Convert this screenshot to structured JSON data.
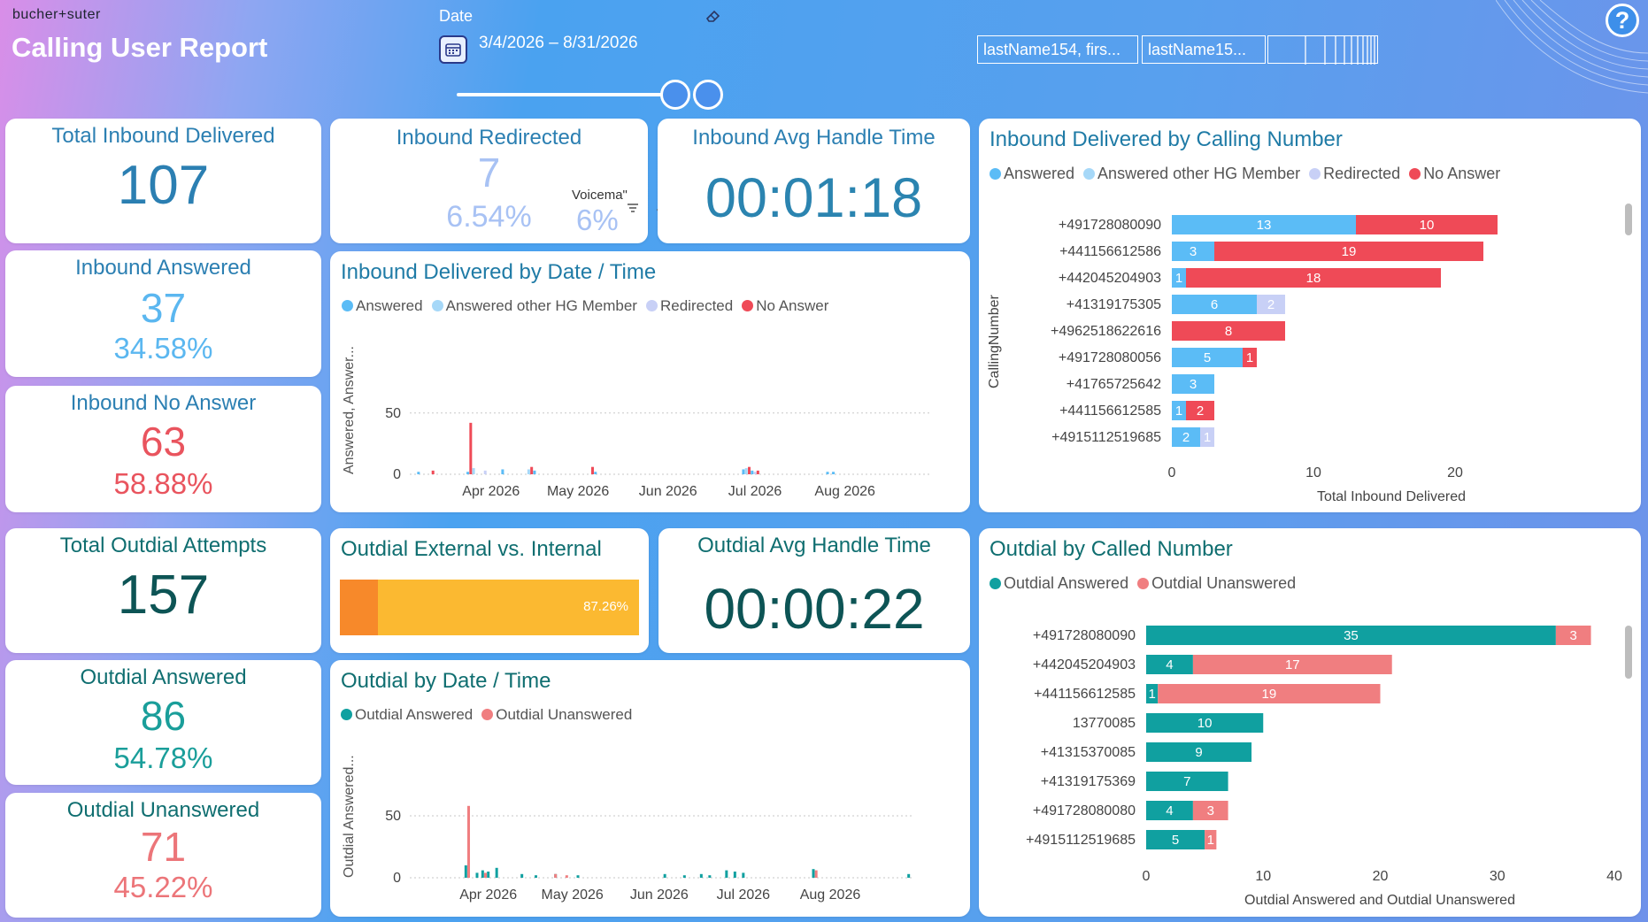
{
  "header": {
    "brand": "bucher+suter",
    "title": "Calling User Report",
    "date_label": "Date",
    "date_range": "3/4/2026 – 8/31/2026",
    "user_filter_1": "lastName154, firs...",
    "user_filter_2": "lastName15...",
    "help_label": "?"
  },
  "colors": {
    "answered": "#5bbcf6",
    "answered_other": "#a6d8f8",
    "redirected": "#c8d0f6",
    "no_answer": "#ef4a57",
    "outdial_answered": "#10a0a0",
    "outdial_unanswered": "#f07e80"
  },
  "kpis": {
    "total_inbound": {
      "title": "Total Inbound Delivered",
      "value": "107"
    },
    "inbound_redirected": {
      "title": "Inbound Redirected",
      "value": "7",
      "pct": "6.54%",
      "voicemail_label": "Voicema\"",
      "voicemail_pct": "6%"
    },
    "inbound_aht": {
      "title": "Inbound Avg Handle Time",
      "value": "00:01:18"
    },
    "inbound_answered": {
      "title": "Inbound Answered",
      "value": "37",
      "pct": "34.58%"
    },
    "inbound_no_answer": {
      "title": "Inbound No Answer",
      "value": "63",
      "pct": "58.88%"
    },
    "total_outdial": {
      "title": "Total Outdial Attempts",
      "value": "157"
    },
    "outdial_aht": {
      "title": "Outdial Avg Handle Time",
      "value": "00:00:22"
    },
    "outdial_answered": {
      "title": "Outdial Answered",
      "value": "86",
      "pct": "54.78%"
    },
    "outdial_unanswered": {
      "title": "Outdial Unanswered",
      "value": "71",
      "pct": "45.22%"
    }
  },
  "outdial_ext_int": {
    "title": "Outdial External vs. Internal",
    "external_pct_label": "87.26%",
    "external_fraction": 0.8726
  },
  "inbound_by_number": {
    "title": "Inbound Delivered by Calling Number",
    "legend": [
      "Answered",
      "Answered other HG Member",
      "Redirected",
      "No Answer"
    ],
    "ylabel": "CallingNumber",
    "xlabel": "Total Inbound Delivered"
  },
  "outdial_by_number": {
    "title": "Outdial by Called Number",
    "legend": [
      "Outdial Answered",
      "Outdial Unanswered"
    ],
    "xlabel": "Outdial Answered and Outdial Unanswered"
  },
  "inbound_by_date": {
    "title": "Inbound Delivered by Date / Time",
    "legend": [
      "Answered",
      "Answered other HG Member",
      "Redirected",
      "No Answer"
    ],
    "ylabel": "Answered, Answer..."
  },
  "outdial_by_date": {
    "title": "Outdial by Date / Time",
    "legend": [
      "Outdial Answered",
      "Outdial Unanswered"
    ],
    "ylabel": "Outdial Answered..."
  },
  "chart_data": [
    {
      "type": "bar",
      "orientation": "horizontal",
      "stacked": true,
      "title": "Inbound Delivered by Calling Number",
      "ylabel": "CallingNumber",
      "xlabel": "Total Inbound Delivered",
      "categories": [
        "+491728080090",
        "+441156612586",
        "+442045204903",
        "+41319175305",
        "+4962518622616",
        "+491728080056",
        "+41765725642",
        "+441156612585",
        "+4915112519685"
      ],
      "series": [
        {
          "name": "Answered",
          "values": [
            13,
            3,
            1,
            6,
            0,
            5,
            3,
            1,
            2
          ]
        },
        {
          "name": "Answered other HG Member",
          "values": [
            0,
            0,
            0,
            0,
            0,
            0,
            0,
            0,
            0
          ]
        },
        {
          "name": "Redirected",
          "values": [
            0,
            0,
            0,
            2,
            0,
            0,
            0,
            0,
            1
          ]
        },
        {
          "name": "No Answer",
          "values": [
            10,
            19,
            18,
            0,
            8,
            1,
            0,
            2,
            0
          ]
        }
      ],
      "xlim": [
        0,
        25
      ],
      "xticks": [
        0,
        10,
        20
      ]
    },
    {
      "type": "bar",
      "orientation": "horizontal",
      "stacked": true,
      "title": "Outdial by Called Number",
      "xlabel": "Outdial Answered and Outdial Unanswered",
      "categories": [
        "+491728080090",
        "+442045204903",
        "+441156612585",
        "13770085",
        "+41315370085",
        "+41319175369",
        "+491728080080",
        "+4915112519685"
      ],
      "series": [
        {
          "name": "Outdial Answered",
          "values": [
            35,
            4,
            1,
            10,
            9,
            7,
            4,
            5
          ]
        },
        {
          "name": "Outdial Unanswered",
          "values": [
            3,
            17,
            19,
            0,
            0,
            0,
            3,
            1
          ]
        }
      ],
      "xlim": [
        0,
        40
      ],
      "xticks": [
        0,
        10,
        20,
        30,
        40
      ]
    },
    {
      "type": "bar",
      "title": "Inbound Delivered by Date / Time",
      "ylabel": "Answered, Answer...",
      "x_ticks": [
        "Apr 2026",
        "May 2026",
        "Jun 2026",
        "Jul 2026",
        "Aug 2026"
      ],
      "yticks": [
        0,
        50
      ],
      "ylim": [
        0,
        65
      ],
      "x_range_days": [
        0,
        180
      ],
      "tick_days": [
        28,
        58,
        89,
        119,
        150
      ],
      "series": [
        {
          "name": "Answered",
          "points": [
            [
              3,
              2
            ],
            [
              20,
              2
            ],
            [
              32,
              4
            ],
            [
              43,
              3
            ],
            [
              64,
              2
            ],
            [
              115,
              4
            ],
            [
              118,
              3
            ],
            [
              144,
              2
            ],
            [
              146,
              2
            ]
          ]
        },
        {
          "name": "Answered other HG Member",
          "points": [
            [
              22,
              5
            ],
            [
              41,
              4
            ],
            [
              116,
              5
            ]
          ]
        },
        {
          "name": "Redirected",
          "points": [
            [
              26,
              3
            ],
            [
              42,
              2
            ],
            [
              119,
              2
            ]
          ]
        },
        {
          "name": "No Answer",
          "points": [
            [
              21,
              42
            ],
            [
              42,
              6
            ],
            [
              8,
              3
            ],
            [
              63,
              6
            ],
            [
              117,
              6
            ],
            [
              120,
              3
            ]
          ]
        }
      ]
    },
    {
      "type": "bar",
      "title": "Outdial by Date / Time",
      "ylabel": "Outdial Answered...",
      "x_ticks": [
        "Apr 2026",
        "May 2026",
        "Jun 2026",
        "Jul 2026",
        "Aug 2026"
      ],
      "yticks": [
        0,
        50
      ],
      "ylim": [
        0,
        60
      ],
      "x_range_days": [
        0,
        180
      ],
      "tick_days": [
        28,
        58,
        89,
        119,
        150
      ],
      "series": [
        {
          "name": "Outdial Answered",
          "points": [
            [
              20,
              10
            ],
            [
              24,
              4
            ],
            [
              26,
              6
            ],
            [
              28,
              5
            ],
            [
              31,
              8
            ],
            [
              40,
              3
            ],
            [
              45,
              2
            ],
            [
              52,
              3
            ],
            [
              60,
              2
            ],
            [
              91,
              3
            ],
            [
              98,
              2
            ],
            [
              104,
              3
            ],
            [
              107,
              2
            ],
            [
              113,
              6
            ],
            [
              116,
              5
            ],
            [
              119,
              4
            ],
            [
              144,
              7
            ],
            [
              178,
              3
            ]
          ]
        },
        {
          "name": "Outdial Unanswered",
          "points": [
            [
              21,
              58
            ],
            [
              27,
              4
            ],
            [
              52,
              3
            ],
            [
              56,
              2
            ],
            [
              145,
              6
            ]
          ]
        }
      ]
    }
  ]
}
